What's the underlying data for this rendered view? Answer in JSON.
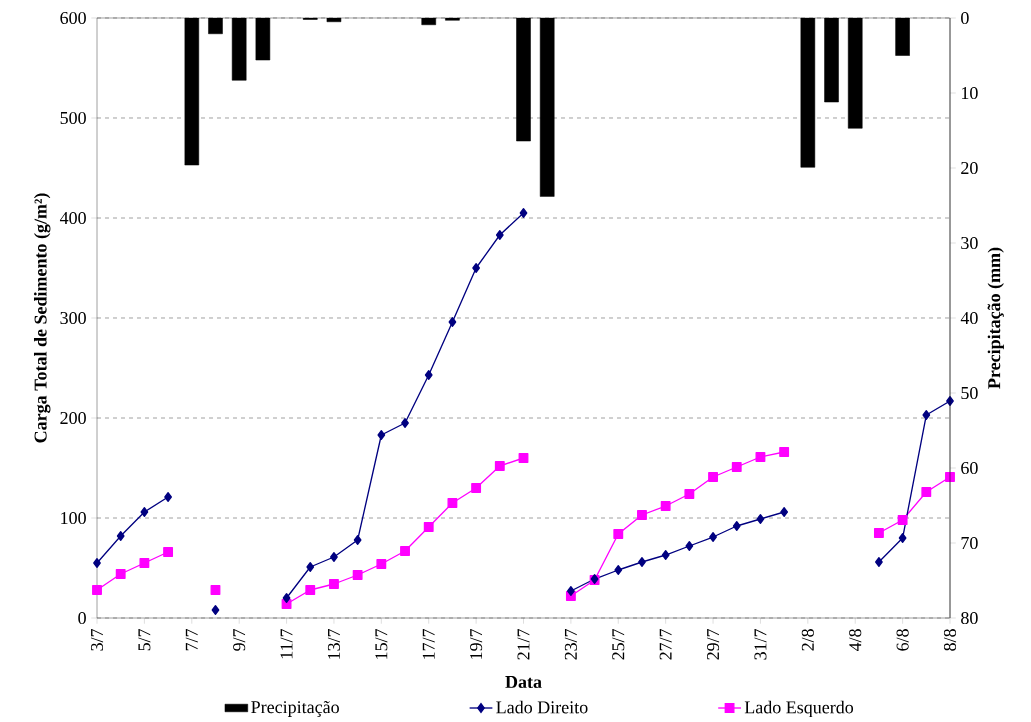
{
  "chart_data": {
    "type": "line",
    "categories": [
      "3/7",
      null,
      "5/7",
      null,
      "7/7",
      null,
      "9/7",
      null,
      "11/7",
      null,
      "13/7",
      null,
      "15/7",
      null,
      "17/7",
      null,
      "19/7",
      null,
      "21/7",
      null,
      "23/7",
      null,
      "25/7",
      null,
      "27/7",
      null,
      "29/7",
      null,
      "31/7",
      null,
      "2/8",
      null,
      "4/8",
      null,
      "6/8",
      null,
      "8/8"
    ],
    "series": [
      {
        "name": "Precipitação",
        "type": "bar",
        "axis": "y2",
        "color": "#000000",
        "values": [
          null,
          null,
          null,
          null,
          19.6,
          2.1,
          8.3,
          5.6,
          null,
          0.2,
          0.5,
          null,
          null,
          null,
          0.9,
          0.3,
          null,
          null,
          16.4,
          23.8,
          null,
          null,
          null,
          null,
          null,
          null,
          null,
          null,
          null,
          null,
          19.9,
          11.2,
          14.7,
          null,
          5.0,
          null,
          null
        ]
      },
      {
        "name": "Lado Direito",
        "type": "line",
        "color": "#000080",
        "marker": "diamond",
        "values": [
          55,
          82,
          106,
          121,
          null,
          8,
          null,
          null,
          20,
          51,
          61,
          78,
          183,
          195,
          243,
          296,
          350,
          383,
          405,
          null,
          27,
          39,
          48,
          56,
          63,
          72,
          81,
          92,
          99,
          106,
          null,
          null,
          null,
          56,
          80,
          203,
          217
        ]
      },
      {
        "name": "Lado Esquerdo",
        "type": "line",
        "color": "#ff00ff",
        "marker": "square",
        "values": [
          28,
          44,
          55,
          66,
          null,
          28,
          null,
          null,
          14,
          28,
          34,
          43,
          54,
          67,
          91,
          115,
          130,
          152,
          160,
          null,
          22,
          38,
          84,
          103,
          112,
          124,
          141,
          151,
          161,
          166,
          null,
          null,
          null,
          85,
          98,
          126,
          141
        ]
      }
    ],
    "xlabel": "Data",
    "ylabel": "Carga Total de Sedimento (g/m²)",
    "y2label": "Precipitação (mm)",
    "ylim": [
      0,
      600
    ],
    "yticks": [
      0,
      100,
      200,
      300,
      400,
      500,
      600
    ],
    "y2lim": [
      80,
      0
    ],
    "y2ticks": [
      0,
      10,
      20,
      30,
      40,
      50,
      60,
      70,
      80
    ],
    "grid": "y",
    "legend": "bottom"
  }
}
